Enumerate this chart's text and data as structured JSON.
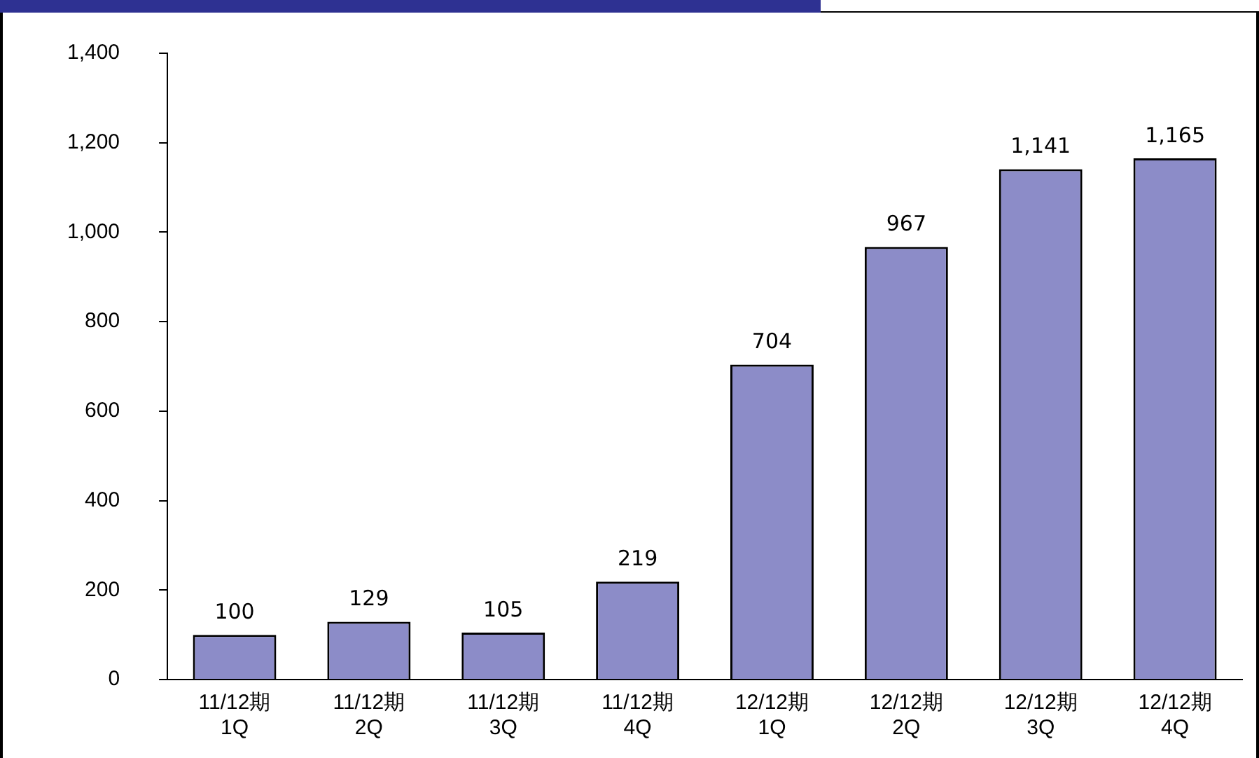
{
  "chart_data": {
    "type": "bar",
    "categories": [
      "11/12期\n1Q",
      "11/12期\n2Q",
      "11/12期\n3Q",
      "11/12期\n4Q",
      "12/12期\n1Q",
      "12/12期\n2Q",
      "12/12期\n3Q",
      "12/12期\n4Q"
    ],
    "values": [
      100,
      129,
      105,
      219,
      704,
      967,
      1141,
      1165
    ],
    "value_labels": [
      "100",
      "129",
      "105",
      "219",
      "704",
      "967",
      "1,141",
      "1,165"
    ],
    "color": "#8c8cc8",
    "ylim": [
      0,
      1400
    ],
    "yticks": [
      0,
      {
        "value": 200,
        "label": "200"
      },
      {
        "value": 400,
        "label": "400"
      },
      {
        "value": 600,
        "label": "600"
      },
      {
        "value": 800,
        "label": "800"
      },
      {
        "value": 1000,
        "label": "1,000"
      },
      {
        "value": 1200,
        "label": "1,200"
      },
      {
        "value": 1400,
        "label": "1,400"
      }
    ],
    "grid": false,
    "legend": false
  }
}
